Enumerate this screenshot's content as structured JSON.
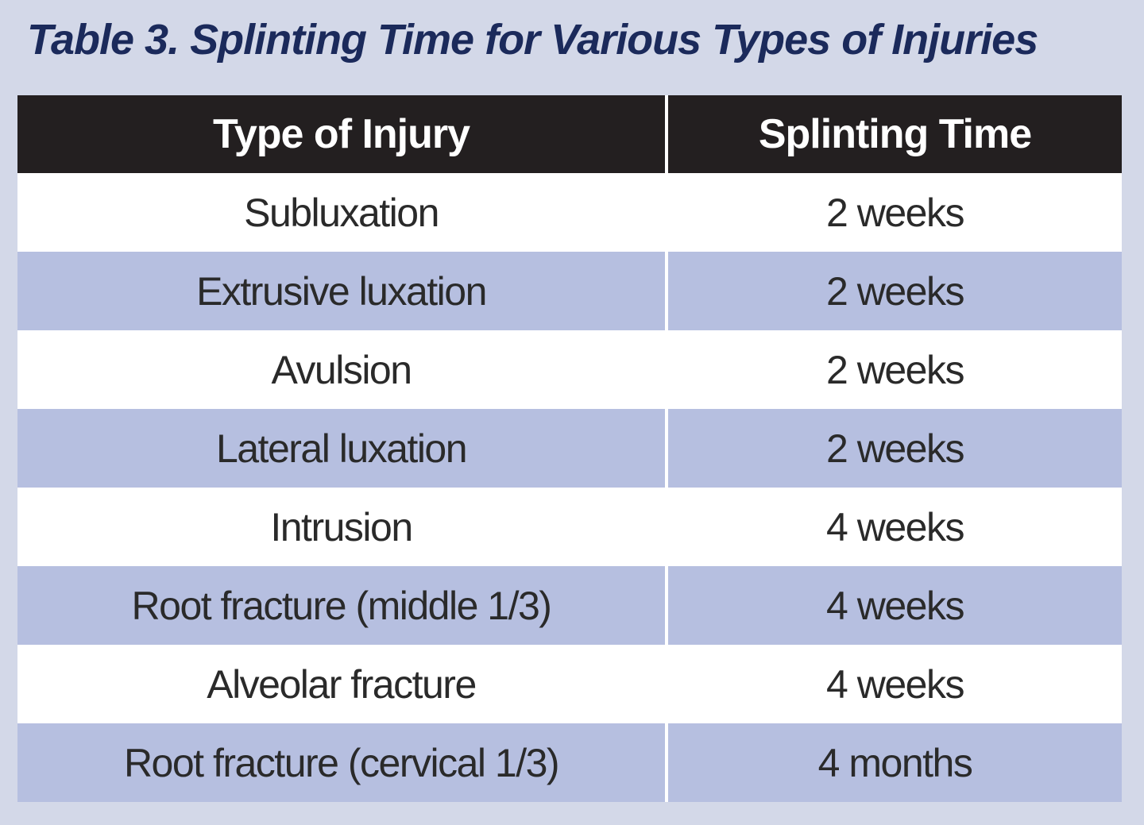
{
  "title": "Table 3. Splinting Time for Various Types of Injuries",
  "table": {
    "headers": [
      "Type of Injury",
      "Splinting Time"
    ],
    "rows": [
      [
        "Subluxation",
        "2 weeks"
      ],
      [
        "Extrusive luxation",
        "2 weeks"
      ],
      [
        "Avulsion",
        "2 weeks"
      ],
      [
        "Lateral luxation",
        "2 weeks"
      ],
      [
        "Intrusion",
        "4 weeks"
      ],
      [
        "Root fracture (middle 1/3)",
        "4 weeks"
      ],
      [
        "Alveolar fracture",
        "4 weeks"
      ],
      [
        "Root fracture (cervical 1/3)",
        "4 months"
      ]
    ]
  },
  "colors": {
    "header_bg": "#231f20",
    "row_alt_bg": "#b6bfe0",
    "row_bg": "#ffffff",
    "page_bg": "#d3d8e8",
    "title_color": "#1b2a5b"
  }
}
